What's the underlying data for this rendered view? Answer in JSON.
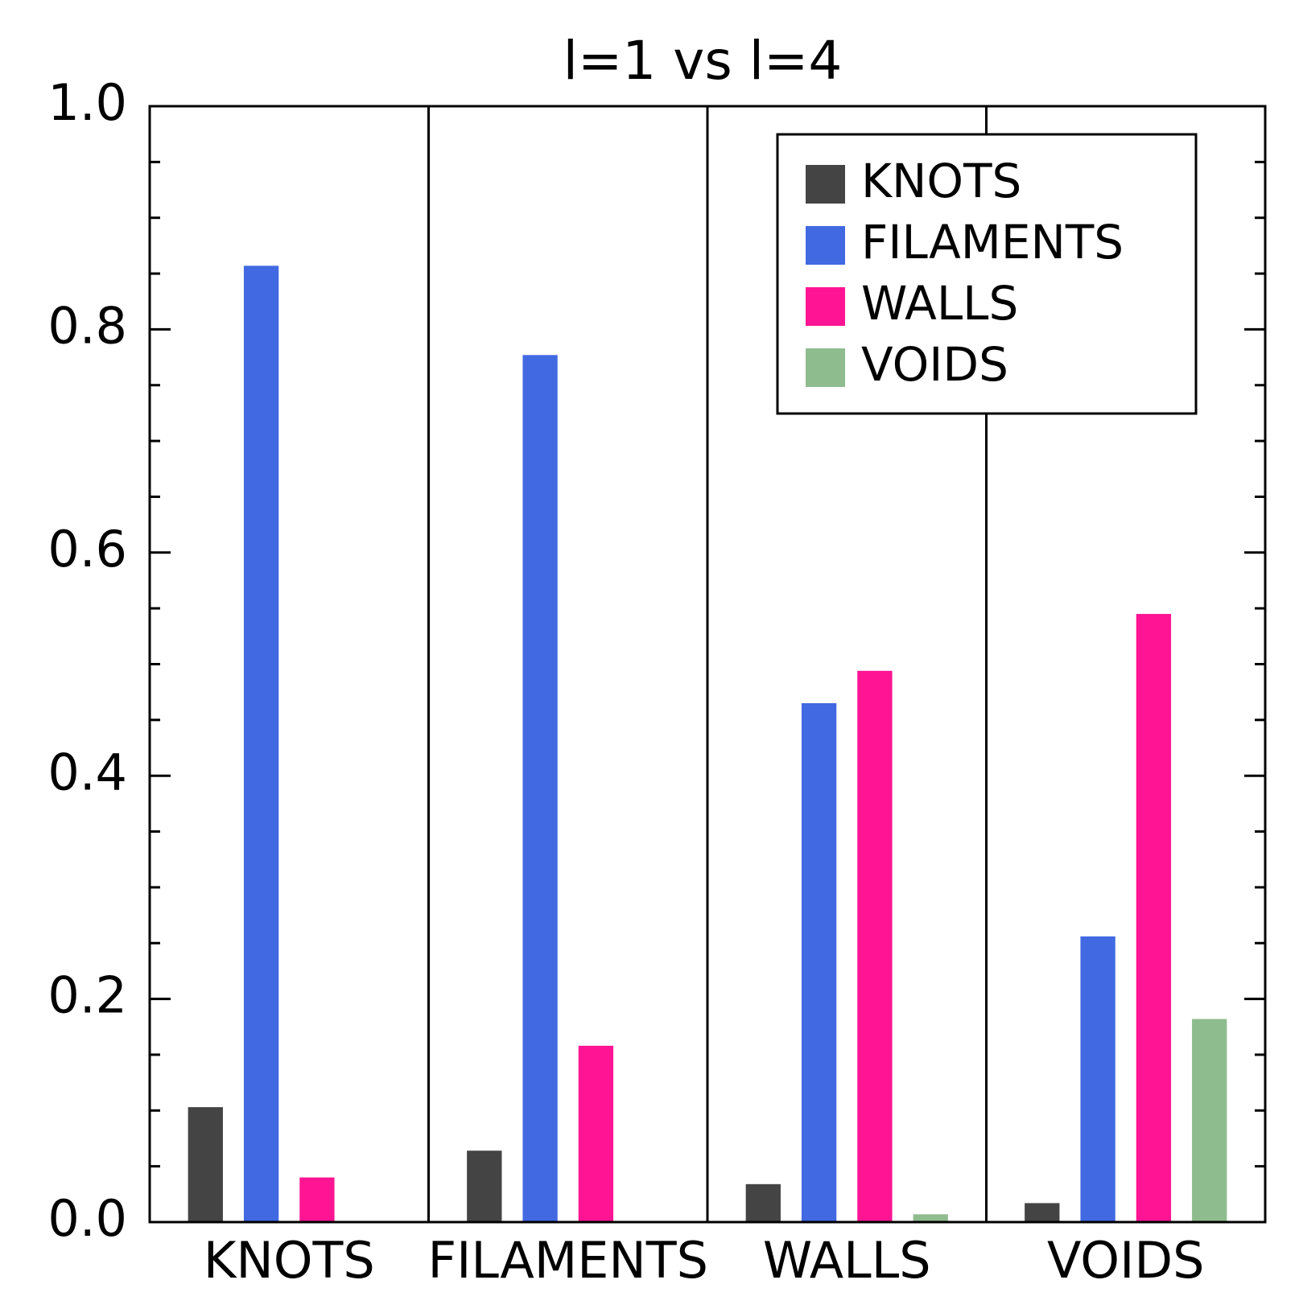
{
  "chart_data": {
    "type": "bar",
    "title": "l=1 vs l=4",
    "categories": [
      "KNOTS",
      "FILAMENTS",
      "WALLS",
      "VOIDS"
    ],
    "series": [
      {
        "name": "KNOTS",
        "color": "#444444",
        "values": [
          0.103,
          0.064,
          0.034,
          0.017
        ]
      },
      {
        "name": "FILAMENTS",
        "color": "#4169e1",
        "values": [
          0.857,
          0.777,
          0.465,
          0.256
        ]
      },
      {
        "name": "WALLS",
        "color": "#ff1493",
        "values": [
          0.04,
          0.158,
          0.494,
          0.545
        ]
      },
      {
        "name": "VOIDS",
        "color": "#8fbc8f",
        "values": [
          0,
          0.001,
          0.007,
          0.182
        ]
      }
    ],
    "ylim": [
      0,
      1
    ],
    "yticks": [
      {
        "value": 0,
        "label": "0.0"
      },
      {
        "value": 0.2,
        "label": "0.2"
      },
      {
        "value": 0.4,
        "label": "0.4"
      },
      {
        "value": 0.6,
        "label": "0.6"
      },
      {
        "value": 0.8,
        "label": "0.8"
      },
      {
        "value": 1,
        "label": "1.0"
      }
    ],
    "yminor_ticks": [
      0.05,
      0.1,
      0.15,
      0.25,
      0.3,
      0.35,
      0.45,
      0.5,
      0.55,
      0.65,
      0.7,
      0.75,
      0.85,
      0.9,
      0.95
    ],
    "legend_position": "upper right"
  }
}
